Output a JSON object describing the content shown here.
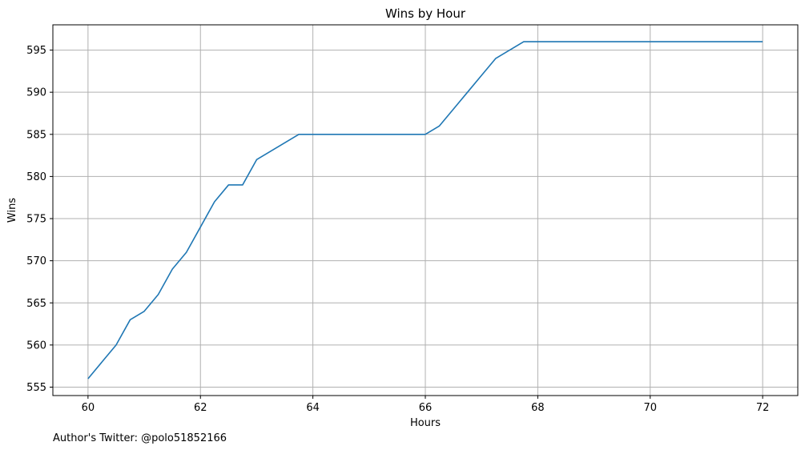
{
  "chart_data": {
    "type": "line",
    "title": "Wins by Hour",
    "xlabel": "Hours",
    "ylabel": "Wins",
    "xlim": [
      59.375,
      72.625
    ],
    "ylim": [
      554.0,
      598.0
    ],
    "xticks": [
      60,
      62,
      64,
      66,
      68,
      70,
      72
    ],
    "yticks": [
      555,
      560,
      565,
      570,
      575,
      580,
      585,
      590,
      595
    ],
    "grid": true,
    "series": [
      {
        "color": "#1f77b4",
        "x": [
          60,
          60.25,
          60.5,
          60.75,
          61,
          61.25,
          61.5,
          61.75,
          62,
          62.25,
          62.5,
          62.75,
          63,
          63.25,
          63.5,
          63.75,
          64,
          64.25,
          64.5,
          64.75,
          65,
          65.25,
          65.5,
          65.75,
          66,
          66.25,
          66.5,
          66.75,
          67,
          67.25,
          67.5,
          67.75,
          68,
          68.25,
          68.5,
          68.75,
          69,
          69.25,
          69.5,
          69.75,
          70,
          70.25,
          70.5,
          70.75,
          71,
          71.25,
          71.5,
          71.75,
          72
        ],
        "values": [
          556,
          558,
          560,
          563,
          564,
          566,
          569,
          571,
          574,
          577,
          579,
          579,
          582,
          583,
          584,
          585,
          585,
          585,
          585,
          585,
          585,
          585,
          585,
          585,
          585,
          586,
          588,
          590,
          592,
          594,
          595,
          596,
          596,
          596,
          596,
          596,
          596,
          596,
          596,
          596,
          596,
          596,
          596,
          596,
          596,
          596,
          596,
          596,
          596
        ]
      }
    ]
  },
  "footer": {
    "author_text": "Author's Twitter: @polo51852166"
  }
}
